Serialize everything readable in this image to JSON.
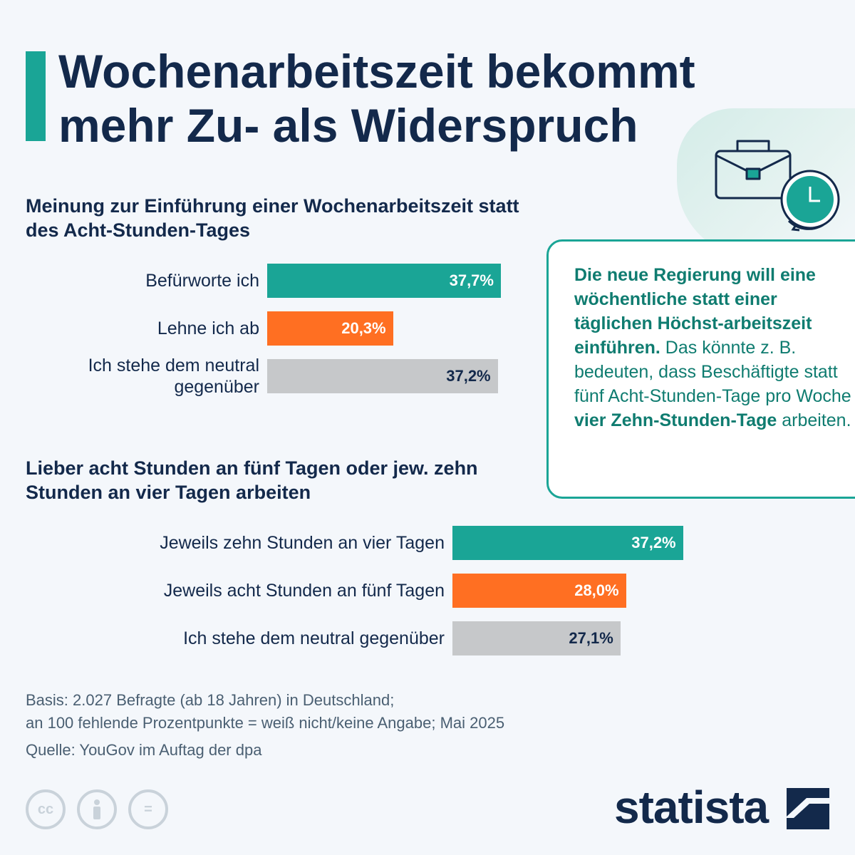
{
  "title": "Wochenarbeitszeit bekommt mehr Zu- als Widerspruch",
  "colors": {
    "teal": "#1aa596",
    "orange": "#ff6f22",
    "gray": "#c6c8ca",
    "navy": "#13294b"
  },
  "icons": [
    "briefcase-icon",
    "clock-icon"
  ],
  "callout": {
    "bold_text": "Die neue Regierung will eine wöchentliche statt einer täglichen Höchst-arbeitszeit einführen.",
    "text_before": "Das könnte z. B. bedeuten, dass Beschäftigte statt fünf Acht-Stunden-Tage pro Woche ",
    "text_bold_inline": "vier Zehn-Stunden-Tage",
    "text_after": " arbeiten."
  },
  "chart_data": [
    {
      "type": "bar",
      "title": "Meinung zur Einführung einer Wochenarbeitszeit statt des Acht-Stunden-Tages",
      "categories": [
        "Befürworte ich",
        "Lehne ich ab",
        "Ich stehe dem neutral gegenüber"
      ],
      "values": [
        37.7,
        20.3,
        37.2
      ],
      "value_labels": [
        "37,7%",
        "20,3%",
        "37,2%"
      ],
      "colors": [
        "#1aa596",
        "#ff6f22",
        "#c6c8ca"
      ],
      "label_colors": [
        "#ffffff",
        "#ffffff",
        "#13294b"
      ]
    },
    {
      "type": "bar",
      "title": "Lieber acht Stunden an fünf Tagen oder jew. zehn Stunden an vier Tagen arbeiten",
      "categories": [
        "Jeweils zehn Stunden an vier Tagen",
        "Jeweils acht Stunden an fünf Tagen",
        "Ich stehe dem neutral gegenüber"
      ],
      "values": [
        37.2,
        28.0,
        27.1
      ],
      "value_labels": [
        "37,2%",
        "28,0%",
        "27,1%"
      ],
      "colors": [
        "#1aa596",
        "#ff6f22",
        "#c6c8ca"
      ],
      "label_colors": [
        "#ffffff",
        "#ffffff",
        "#13294b"
      ]
    }
  ],
  "footer": {
    "basis_line1": "Basis: 2.027 Befragte (ab 18 Jahren) in Deutschland;",
    "basis_line2": "an 100 fehlende Prozentpunkte = weiß nicht/keine Angabe; Mai 2025",
    "source": "Quelle: YouGov im Auftag der dpa"
  },
  "license_icons": [
    "cc-icon",
    "attribution-icon",
    "no-derivatives-icon"
  ],
  "license_labels": {
    "cc": "cc",
    "nd": "="
  },
  "brand": "statista"
}
